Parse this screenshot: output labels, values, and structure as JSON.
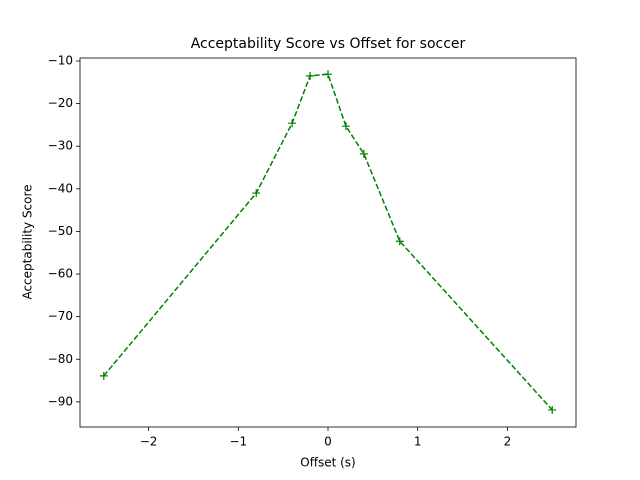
{
  "chart_data": {
    "type": "line",
    "title": "Acceptability Score vs Offset for soccer",
    "x_label": "Offset (s)",
    "y_label": "Acceptability Score",
    "series": [
      {
        "color": "#008000",
        "x": [
          -2.5,
          -0.8,
          -0.4,
          -0.2,
          0,
          0.2,
          0.4,
          0.8,
          2.5
        ],
        "values": [
          -83.9,
          -41.0,
          -24.6,
          -13.5,
          -13.1,
          -25.3,
          -31.8,
          -52.3,
          -91.9
        ]
      }
    ],
    "xlim": [
      -2.765,
      2.765
    ],
    "xticks": [
      {
        "value": -2,
        "label": "−2"
      },
      {
        "value": -1,
        "label": "−1"
      },
      0,
      1,
      2
    ],
    "ylim": [
      -95.9,
      -9.3
    ],
    "yticks": [
      {
        "value": -10,
        "label": "−10"
      },
      {
        "value": -20,
        "label": "−20"
      },
      {
        "value": -30,
        "label": "−30"
      },
      {
        "value": -40,
        "label": "−40"
      },
      {
        "value": -50,
        "label": "−50"
      },
      {
        "value": -60,
        "label": "−60"
      },
      {
        "value": -70,
        "label": "−70"
      },
      {
        "value": -80,
        "label": "−80"
      },
      {
        "value": -90,
        "label": "−90"
      }
    ]
  }
}
